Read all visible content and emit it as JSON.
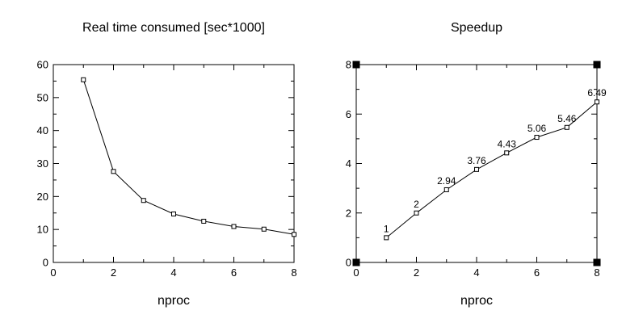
{
  "chart_data": [
    {
      "type": "line",
      "title": "Real time consumed [sec*1000]",
      "xlabel": "nproc",
      "ylabel": "",
      "xlim": [
        0,
        8
      ],
      "ylim": [
        0,
        60
      ],
      "xticks": [
        0,
        2,
        4,
        6,
        8
      ],
      "yticks": [
        0,
        10,
        20,
        30,
        40,
        50,
        60
      ],
      "grid": false,
      "marker": "square",
      "series": [
        {
          "x": [
            1,
            2,
            3,
            4,
            5,
            6,
            7,
            8
          ],
          "values": [
            55.4,
            27.6,
            18.8,
            14.7,
            12.5,
            10.9,
            10.1,
            8.5
          ]
        }
      ]
    },
    {
      "type": "line",
      "title": "Speedup",
      "xlabel": "nproc",
      "ylabel": "",
      "xlim": [
        0,
        8
      ],
      "ylim": [
        0,
        8
      ],
      "xticks": [
        0,
        2,
        4,
        6,
        8
      ],
      "yticks": [
        0,
        2,
        4,
        6,
        8
      ],
      "grid": false,
      "marker": "square",
      "corner_markers": true,
      "series": [
        {
          "x": [
            1,
            2,
            3,
            4,
            5,
            6,
            7,
            8
          ],
          "values": [
            1,
            2,
            2.94,
            3.76,
            4.43,
            5.06,
            5.46,
            6.49
          ],
          "data_labels": [
            "1",
            "2",
            "2.94",
            "3.76",
            "4.43",
            "5.06",
            "5.46",
            "6.49"
          ]
        }
      ]
    }
  ]
}
